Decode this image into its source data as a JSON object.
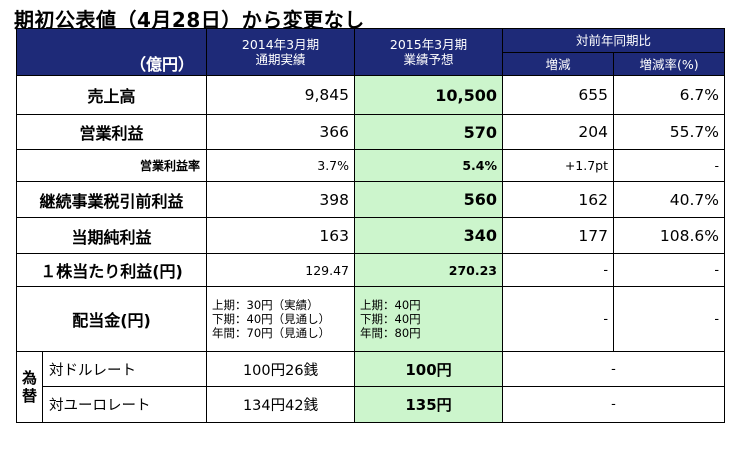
{
  "title": "期初公表値（4月28日）から変更なし",
  "header": {
    "unit": "（億円）",
    "col_fy2014": "2014年3月期\n通期実績",
    "col_fy2015": "2015年3月期\n業績予想",
    "col_yoy": "対前年同期比",
    "col_change": "増減",
    "col_change_rate": "増減率(%)"
  },
  "rows": [
    {
      "label": "売上高",
      "fy2014": "9,845",
      "fy2015": "10,500",
      "change": "655",
      "rate": "6.7%"
    },
    {
      "label": "営業利益",
      "fy2014": "366",
      "fy2015": "570",
      "change": "204",
      "rate": "55.7%"
    },
    {
      "label": "営業利益率",
      "fy2014": "3.7%",
      "fy2015": "5.4%",
      "change": "+1.7pt",
      "rate": "-"
    },
    {
      "label": "継続事業税引前利益",
      "fy2014": "398",
      "fy2015": "560",
      "change": "162",
      "rate": "40.7%"
    },
    {
      "label": "当期純利益",
      "fy2014": "163",
      "fy2015": "340",
      "change": "177",
      "rate": "108.6%"
    },
    {
      "label": "１株当たり利益(円)",
      "fy2014": "129.47",
      "fy2015": "270.23",
      "change": "-",
      "rate": "-"
    }
  ],
  "dividend": {
    "label": "配当金(円)",
    "fy2014": "上期：30円（実績）\n下期：40円（見通し）\n年間：70円（見通し）",
    "fy2015": "上期：40円\n下期：40円\n年間：80円",
    "change": "-",
    "rate": "-"
  },
  "fx": {
    "side_label": "為\n替",
    "usd_label": "対ドルレート",
    "usd_fy2014": "100円26銭",
    "usd_fy2015": "100円",
    "usd_change": "-",
    "eur_label": "対ユーロレート",
    "eur_fy2014": "134円42銭",
    "eur_fy2015": "135円",
    "eur_change": "-"
  }
}
